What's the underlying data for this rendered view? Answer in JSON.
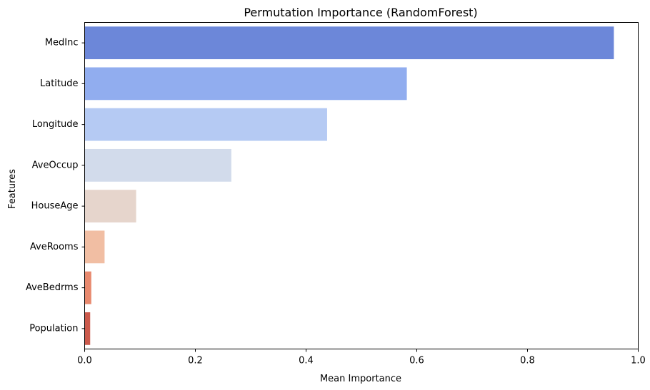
{
  "chart_data": {
    "type": "bar",
    "orientation": "horizontal",
    "title": "Permutation Importance (RandomForest)",
    "xlabel": "Mean Importance",
    "ylabel": "Features",
    "xlim": [
      0,
      1.0
    ],
    "xticks": [
      {
        "value": 0.0,
        "label": "0.0"
      },
      {
        "value": 0.2,
        "label": "0.2"
      },
      {
        "value": 0.4,
        "label": "0.4"
      },
      {
        "value": 0.6,
        "label": "0.6"
      },
      {
        "value": 0.8,
        "label": "0.8"
      },
      {
        "value": 1.0,
        "label": "1.0"
      }
    ],
    "grid": false,
    "categories": [
      "MedInc",
      "Latitude",
      "Longitude",
      "AveOccup",
      "HouseAge",
      "AveRooms",
      "AveBedrms",
      "Population"
    ],
    "values": [
      0.956,
      0.582,
      0.438,
      0.265,
      0.093,
      0.036,
      0.012,
      0.01
    ],
    "colors": [
      "#6c87d9",
      "#91adef",
      "#b5caf3",
      "#d2dbeb",
      "#e6d5cc",
      "#f1bea3",
      "#e8896e",
      "#cb5a4c"
    ]
  }
}
